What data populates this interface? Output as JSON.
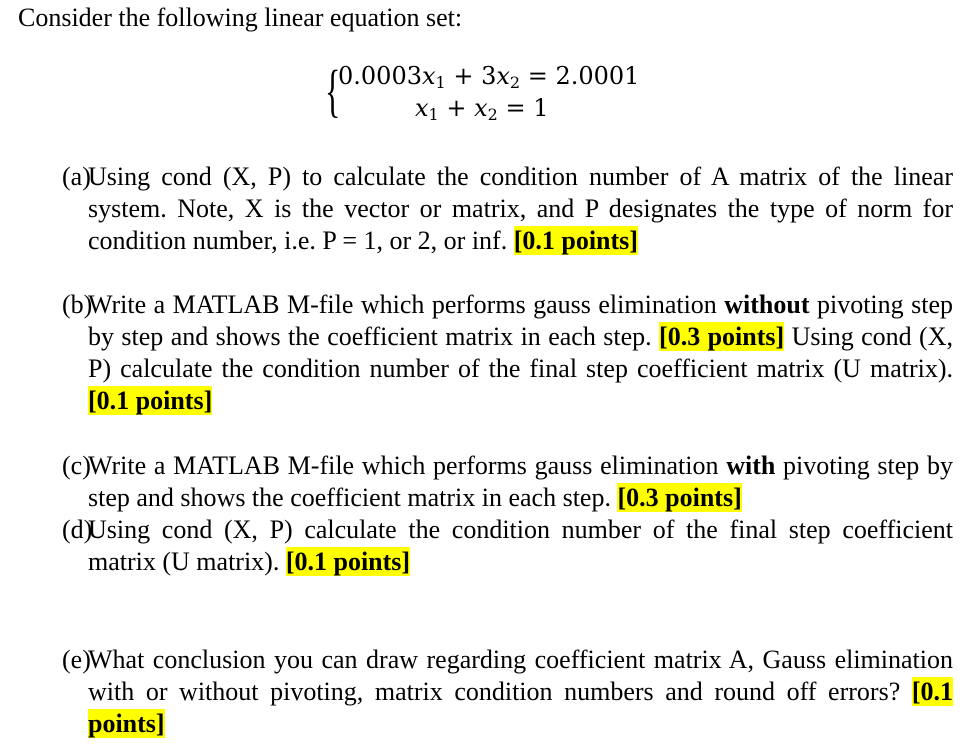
{
  "intro": "Consider the following linear equation set:",
  "equations": {
    "row1": {
      "c1": "0.0003",
      "v1": "x",
      "s1": "1",
      "op": " + 3",
      "v2": "x",
      "s2": "2",
      "rhs": " = 2.0001"
    },
    "row2": {
      "v1": "x",
      "s1": "1",
      "op": " + ",
      "v2": "x",
      "s2": "2",
      "rhs": " = 1"
    }
  },
  "items": {
    "a": {
      "label": "(a)",
      "text": "Using cond (X, P) to calculate the condition number of A matrix of the linear system. Note, X is the vector or matrix, and P designates the type of norm for condition number, i.e. P = 1, or  2, or inf. ",
      "points": "[0.1 points]"
    },
    "b": {
      "label": "(b)",
      "t1": "Write a MATLAB M-file which performs gauss elimination ",
      "bold": "without",
      "t2": " pivoting step by step and shows the coefficient matrix in each step. ",
      "points1": "[0.3 points]",
      "t3": " Using cond (X, P) calculate the condition number of the final step coefficient matrix (U matrix). ",
      "points2": "[0.1 points]"
    },
    "c": {
      "label": "(c)",
      "t1": "Write a MATLAB M-file which performs gauss elimination ",
      "bold": "with",
      "t2": " pivoting step by step and shows the coefficient matrix in each step. ",
      "points": "[0.3 points]"
    },
    "d": {
      "label": "(d)",
      "text": "Using cond (X, P) calculate the condition number of the final step coefficient matrix (U matrix). ",
      "points": "[0.1 points]"
    },
    "e": {
      "label": "(e)",
      "text": "What conclusion you can draw regarding coefficient matrix A, Gauss elimination with or without pivoting, matrix condition numbers and round off errors? ",
      "points": "[0.1 points]"
    }
  },
  "colors": {
    "highlight": "#ffff00"
  }
}
